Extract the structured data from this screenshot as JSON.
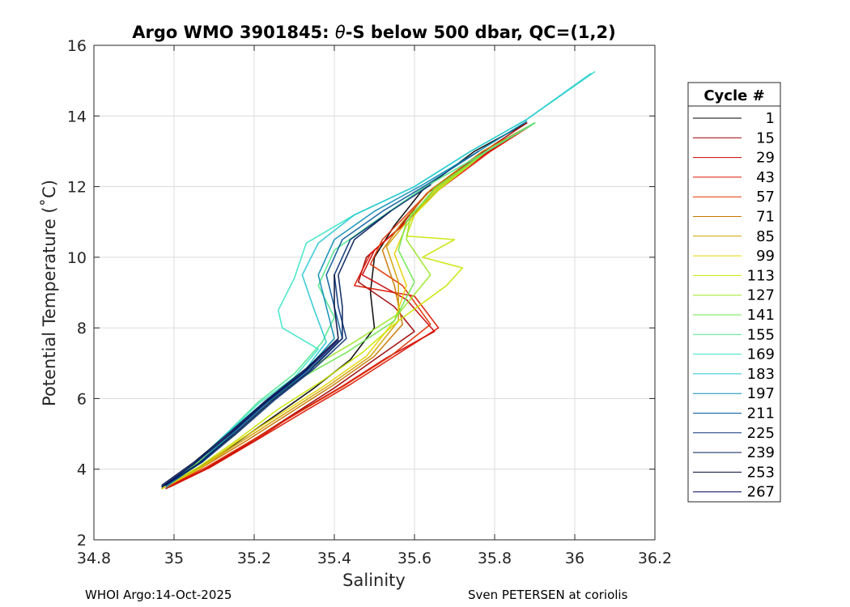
{
  "chart_data": {
    "type": "line",
    "title_prefix": "Argo WMO 3901845: ",
    "title_theta": "θ",
    "title_suffix": "-S below 500 dbar,  QC=(1,2)",
    "xlabel": "Salinity",
    "ylabel": "Potential Temperature (˚C)",
    "xlim": [
      34.8,
      36.2
    ],
    "ylim": [
      2,
      16
    ],
    "xticks": [
      "34.8",
      "35",
      "35.2",
      "35.4",
      "35.6",
      "35.8",
      "36",
      "36.2"
    ],
    "yticks": [
      "2",
      "4",
      "6",
      "8",
      "10",
      "12",
      "14",
      "16"
    ],
    "grid": true,
    "legend": {
      "title": "Cycle #",
      "placement": "outside-right",
      "entries": [
        "1",
        "15",
        "29",
        "43",
        "57",
        "71",
        "85",
        "99",
        "113",
        "127",
        "141",
        "155",
        "169",
        "183",
        "197",
        "211",
        "225",
        "239",
        "253",
        "267"
      ],
      "colors": [
        "#000000",
        "#9b0000",
        "#c80000",
        "#dc1400",
        "#e03000",
        "#c87800",
        "#d2a000",
        "#e6d200",
        "#c8e600",
        "#9be628",
        "#6ee650",
        "#50e68c",
        "#3ce6c8",
        "#28c8d2",
        "#0a8cb4",
        "#0a5a9b",
        "#0a3278",
        "#051e5a",
        "#000a3c",
        "#00005a"
      ]
    },
    "series": [
      {
        "color": "#000000",
        "points": [
          [
            34.97,
            3.45
          ],
          [
            35.05,
            3.95
          ],
          [
            35.15,
            4.7
          ],
          [
            35.25,
            5.5
          ],
          [
            35.35,
            6.3
          ],
          [
            35.44,
            7.1
          ],
          [
            35.5,
            8.0
          ],
          [
            35.49,
            9.0
          ],
          [
            35.5,
            10.0
          ],
          [
            35.55,
            10.9
          ],
          [
            35.62,
            11.9
          ],
          [
            35.75,
            13.0
          ],
          [
            35.88,
            13.8
          ]
        ]
      },
      {
        "color": "#9b0000",
        "points": [
          [
            34.98,
            3.45
          ],
          [
            35.07,
            3.95
          ],
          [
            35.18,
            4.7
          ],
          [
            35.29,
            5.5
          ],
          [
            35.4,
            6.3
          ],
          [
            35.5,
            7.1
          ],
          [
            35.6,
            7.9
          ],
          [
            35.55,
            8.6
          ],
          [
            35.46,
            9.3
          ],
          [
            35.48,
            10.0
          ],
          [
            35.56,
            10.8
          ],
          [
            35.63,
            11.8
          ],
          [
            35.76,
            12.9
          ],
          [
            35.88,
            13.8
          ]
        ]
      },
      {
        "color": "#c80000",
        "points": [
          [
            34.98,
            3.5
          ],
          [
            35.08,
            4.0
          ],
          [
            35.2,
            4.8
          ],
          [
            35.3,
            5.55
          ],
          [
            35.42,
            6.35
          ],
          [
            35.53,
            7.15
          ],
          [
            35.65,
            7.9
          ],
          [
            35.58,
            8.8
          ],
          [
            35.47,
            9.5
          ],
          [
            35.5,
            10.2
          ],
          [
            35.58,
            11.0
          ],
          [
            35.65,
            11.9
          ],
          [
            35.78,
            12.95
          ],
          [
            35.9,
            13.8
          ]
        ]
      },
      {
        "color": "#dc1400",
        "points": [
          [
            34.99,
            3.5
          ],
          [
            35.09,
            4.05
          ],
          [
            35.21,
            4.85
          ],
          [
            35.32,
            5.6
          ],
          [
            35.44,
            6.4
          ],
          [
            35.55,
            7.2
          ],
          [
            35.66,
            8.0
          ],
          [
            35.6,
            8.9
          ],
          [
            35.45,
            9.2
          ],
          [
            35.49,
            10.1
          ],
          [
            35.57,
            10.9
          ],
          [
            35.66,
            11.9
          ],
          [
            35.79,
            13.0
          ],
          [
            35.9,
            13.8
          ]
        ]
      },
      {
        "color": "#e03000",
        "points": [
          [
            34.98,
            3.5
          ],
          [
            35.08,
            4.05
          ],
          [
            35.2,
            4.85
          ],
          [
            35.31,
            5.6
          ],
          [
            35.43,
            6.4
          ],
          [
            35.54,
            7.2
          ],
          [
            35.64,
            8.1
          ],
          [
            35.57,
            9.2
          ],
          [
            35.49,
            9.8
          ],
          [
            35.52,
            10.5
          ],
          [
            35.58,
            11.2
          ],
          [
            35.64,
            11.9
          ],
          [
            35.78,
            13.0
          ],
          [
            35.9,
            13.8
          ]
        ]
      },
      {
        "color": "#c87800",
        "points": [
          [
            34.98,
            3.5
          ],
          [
            35.07,
            4.05
          ],
          [
            35.18,
            4.8
          ],
          [
            35.29,
            5.6
          ],
          [
            35.4,
            6.4
          ],
          [
            35.5,
            7.2
          ],
          [
            35.57,
            8.1
          ],
          [
            35.55,
            9.2
          ],
          [
            35.52,
            10.2
          ],
          [
            35.57,
            11.0
          ],
          [
            35.64,
            11.9
          ],
          [
            35.77,
            13.0
          ],
          [
            35.9,
            13.8
          ]
        ]
      },
      {
        "color": "#d2a000",
        "points": [
          [
            34.97,
            3.45
          ],
          [
            35.06,
            4.0
          ],
          [
            35.17,
            4.8
          ],
          [
            35.28,
            5.6
          ],
          [
            35.39,
            6.4
          ],
          [
            35.49,
            7.2
          ],
          [
            35.56,
            8.2
          ],
          [
            35.56,
            9.3
          ],
          [
            35.53,
            10.3
          ],
          [
            35.58,
            11.0
          ],
          [
            35.65,
            11.9
          ],
          [
            35.78,
            13.0
          ],
          [
            35.9,
            13.8
          ]
        ]
      },
      {
        "color": "#e6d200",
        "points": [
          [
            34.97,
            3.45
          ],
          [
            35.06,
            4.0
          ],
          [
            35.16,
            4.8
          ],
          [
            35.27,
            5.6
          ],
          [
            35.38,
            6.4
          ],
          [
            35.48,
            7.2
          ],
          [
            35.55,
            8.2
          ],
          [
            35.58,
            9.2
          ],
          [
            35.55,
            10.1
          ],
          [
            35.58,
            10.9
          ],
          [
            35.65,
            11.9
          ],
          [
            35.78,
            13.0
          ],
          [
            35.9,
            13.8
          ]
        ]
      },
      {
        "color": "#c8e600",
        "points": [
          [
            34.97,
            3.5
          ],
          [
            35.06,
            4.05
          ],
          [
            35.16,
            4.85
          ],
          [
            35.26,
            5.7
          ],
          [
            35.37,
            6.5
          ],
          [
            35.47,
            7.3
          ],
          [
            35.56,
            8.2
          ],
          [
            35.68,
            9.2
          ],
          [
            35.72,
            9.7
          ],
          [
            35.62,
            10.0
          ],
          [
            35.7,
            10.5
          ],
          [
            35.58,
            10.6
          ],
          [
            35.6,
            11.2
          ],
          [
            35.66,
            11.9
          ],
          [
            35.78,
            13.0
          ],
          [
            35.9,
            13.8
          ]
        ]
      },
      {
        "color": "#9be628",
        "points": [
          [
            34.97,
            3.5
          ],
          [
            35.05,
            4.1
          ],
          [
            35.15,
            4.95
          ],
          [
            35.24,
            5.9
          ],
          [
            35.33,
            6.8
          ],
          [
            35.45,
            7.6
          ],
          [
            35.56,
            8.4
          ],
          [
            35.64,
            9.5
          ],
          [
            35.58,
            10.5
          ],
          [
            35.59,
            11.2
          ],
          [
            35.66,
            11.95
          ],
          [
            35.78,
            13.0
          ],
          [
            35.9,
            13.8
          ]
        ]
      },
      {
        "color": "#6ee650",
        "points": [
          [
            34.97,
            3.5
          ],
          [
            35.05,
            4.1
          ],
          [
            35.14,
            4.95
          ],
          [
            35.22,
            5.8
          ],
          [
            35.32,
            6.6
          ],
          [
            35.43,
            7.3
          ],
          [
            35.55,
            8.2
          ],
          [
            35.6,
            9.3
          ],
          [
            35.56,
            10.2
          ],
          [
            35.58,
            11.0
          ],
          [
            35.65,
            11.95
          ],
          [
            35.78,
            13.0
          ],
          [
            35.9,
            13.8
          ]
        ]
      },
      {
        "color": "#50e68c",
        "points": [
          [
            34.97,
            3.5
          ],
          [
            35.05,
            4.15
          ],
          [
            35.13,
            5.0
          ],
          [
            35.21,
            5.9
          ],
          [
            35.3,
            6.7
          ],
          [
            35.37,
            7.6
          ],
          [
            35.4,
            8.3
          ],
          [
            35.36,
            9.2
          ],
          [
            35.4,
            10.2
          ],
          [
            35.5,
            11.0
          ],
          [
            35.62,
            11.95
          ],
          [
            35.78,
            13.0
          ],
          [
            35.9,
            13.8
          ]
        ]
      },
      {
        "color": "#3ce6c8",
        "points": [
          [
            34.97,
            3.5
          ],
          [
            35.05,
            4.15
          ],
          [
            35.13,
            5.0
          ],
          [
            35.21,
            5.85
          ],
          [
            35.3,
            6.6
          ],
          [
            35.36,
            7.4
          ],
          [
            35.27,
            8.0
          ],
          [
            35.26,
            8.5
          ],
          [
            35.3,
            9.4
          ],
          [
            35.33,
            10.4
          ],
          [
            35.45,
            11.2
          ],
          [
            35.6,
            12.0
          ],
          [
            35.74,
            13.0
          ],
          [
            35.88,
            13.9
          ],
          [
            36.05,
            15.25
          ]
        ]
      },
      {
        "color": "#28c8d2",
        "points": [
          [
            34.97,
            3.5
          ],
          [
            35.05,
            4.15
          ],
          [
            35.13,
            5.0
          ],
          [
            35.22,
            5.85
          ],
          [
            35.32,
            6.7
          ],
          [
            35.38,
            7.6
          ],
          [
            35.35,
            8.5
          ],
          [
            35.32,
            9.5
          ],
          [
            35.36,
            10.4
          ],
          [
            35.45,
            11.2
          ],
          [
            35.6,
            12.0
          ],
          [
            35.74,
            13.0
          ],
          [
            35.88,
            13.9
          ],
          [
            36.04,
            15.2
          ]
        ]
      },
      {
        "color": "#0a8cb4",
        "points": [
          [
            34.98,
            3.5
          ],
          [
            35.06,
            4.15
          ],
          [
            35.14,
            5.0
          ],
          [
            35.23,
            5.9
          ],
          [
            35.33,
            6.8
          ],
          [
            35.4,
            7.7
          ],
          [
            35.38,
            8.6
          ],
          [
            35.36,
            9.5
          ],
          [
            35.4,
            10.5
          ],
          [
            35.5,
            11.3
          ],
          [
            35.62,
            12.05
          ],
          [
            35.76,
            13.0
          ],
          [
            35.88,
            13.85
          ]
        ]
      },
      {
        "color": "#0a5a9b",
        "points": [
          [
            34.98,
            3.55
          ],
          [
            35.07,
            4.2
          ],
          [
            35.15,
            5.05
          ],
          [
            35.24,
            5.95
          ],
          [
            35.34,
            6.85
          ],
          [
            35.42,
            7.7
          ],
          [
            35.4,
            8.6
          ],
          [
            35.38,
            9.5
          ],
          [
            35.42,
            10.5
          ],
          [
            35.52,
            11.3
          ],
          [
            35.63,
            12.05
          ],
          [
            35.76,
            13.0
          ]
        ]
      },
      {
        "color": "#0a3278",
        "points": [
          [
            34.98,
            3.55
          ],
          [
            35.07,
            4.2
          ],
          [
            35.16,
            5.05
          ],
          [
            35.25,
            5.95
          ],
          [
            35.35,
            6.85
          ],
          [
            35.43,
            7.7
          ],
          [
            35.41,
            8.6
          ],
          [
            35.4,
            9.5
          ],
          [
            35.44,
            10.5
          ],
          [
            35.54,
            11.3
          ],
          [
            35.64,
            12.05
          ]
        ]
      },
      {
        "color": "#051e5a",
        "points": [
          [
            34.97,
            3.5
          ],
          [
            35.06,
            4.15
          ],
          [
            35.15,
            5.0
          ],
          [
            35.24,
            5.9
          ],
          [
            35.34,
            6.8
          ],
          [
            35.42,
            7.7
          ],
          [
            35.42,
            8.6
          ],
          [
            35.41,
            9.5
          ],
          [
            35.45,
            10.5
          ],
          [
            35.54,
            11.3
          ]
        ]
      },
      {
        "color": "#000a3c",
        "points": [
          [
            34.97,
            3.55
          ],
          [
            35.05,
            4.2
          ],
          [
            35.14,
            5.05
          ],
          [
            35.23,
            5.95
          ],
          [
            35.33,
            6.85
          ],
          [
            35.41,
            7.7
          ],
          [
            35.4,
            8.6
          ],
          [
            35.4,
            9.5
          ]
        ]
      },
      {
        "color": "#00005a",
        "points": [
          [
            34.97,
            3.5
          ],
          [
            35.05,
            4.15
          ],
          [
            35.14,
            5.0
          ],
          [
            35.23,
            5.9
          ],
          [
            35.33,
            6.8
          ],
          [
            35.41,
            7.65
          ]
        ]
      }
    ]
  },
  "footer": {
    "left": "WHOI Argo:14-Oct-2025",
    "right": "Sven PETERSEN at coriolis"
  }
}
